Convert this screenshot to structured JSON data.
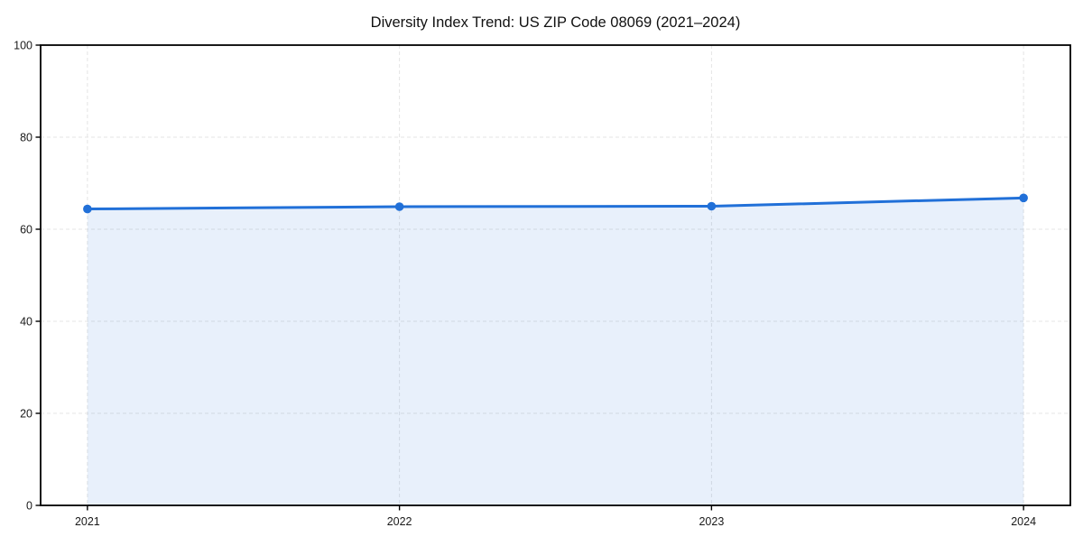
{
  "chart_data": {
    "type": "area",
    "title": "Diversity Index Trend: US ZIP Code 08069 (2021–2024)",
    "x": [
      2021,
      2022,
      2023,
      2024
    ],
    "x_tick_labels": [
      "2021",
      "2022",
      "2023",
      "2024"
    ],
    "values": [
      64.4,
      64.9,
      65.0,
      66.8
    ],
    "xlabel": "",
    "ylabel": "",
    "ylim": [
      0,
      100
    ],
    "yticks": [
      0,
      20,
      40,
      60,
      80,
      100
    ],
    "grid": "dashed-both-axes",
    "legend": "none",
    "frame": "full-box",
    "colors": {
      "line": "#2170d8",
      "marker": "#2170d8",
      "fill": "rgba(33,112,216,0.10)",
      "grid": "#e4e4e4",
      "spine": "#000000",
      "title_text": "#111111",
      "tick_text": "#1a1a1a",
      "background": "#ffffff"
    }
  }
}
